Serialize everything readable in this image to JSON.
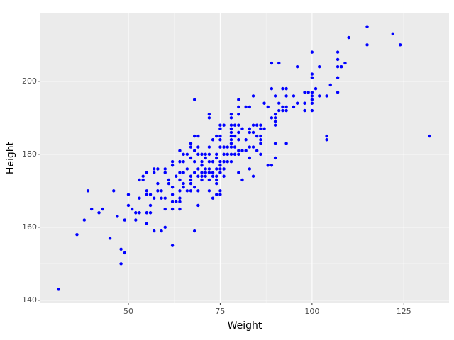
{
  "chart_data": {
    "type": "scatter",
    "x_label": "Weight",
    "y_label": "Height",
    "color": "#0000ff",
    "grid": true,
    "xlim": [
      26.06,
      137.3
    ],
    "ylim": [
      139.2,
      218.8
    ],
    "xticks": [
      50,
      75,
      100,
      125
    ],
    "yticks": [
      140,
      160,
      180,
      200
    ],
    "x": [
      31,
      36,
      38,
      39,
      40,
      42,
      43,
      45,
      46,
      47,
      48,
      48,
      49,
      49,
      50,
      50,
      51,
      52,
      52,
      53,
      53,
      53,
      54,
      54,
      55,
      55,
      55,
      55,
      55,
      56,
      56,
      56,
      57,
      57,
      57,
      57,
      58,
      58,
      58,
      59,
      59,
      59,
      60,
      60,
      60,
      60,
      60,
      61,
      61,
      62,
      62,
      62,
      62,
      62,
      62,
      62,
      63,
      63,
      64,
      64,
      64,
      64,
      64,
      64,
      64,
      64,
      65,
      65,
      65,
      65,
      65,
      66,
      66,
      66,
      67,
      67,
      67,
      67,
      67,
      67,
      67,
      68,
      68,
      68,
      68,
      68,
      68,
      68,
      69,
      69,
      69,
      69,
      69,
      69,
      69,
      70,
      70,
      70,
      70,
      70,
      70,
      71,
      71,
      71,
      71,
      71,
      72,
      72,
      72,
      72,
      72,
      72,
      72,
      72,
      72,
      73,
      73,
      73,
      73,
      73,
      74,
      74,
      74,
      74,
      74,
      74,
      74,
      74,
      75,
      75,
      75,
      75,
      75,
      75,
      75,
      75,
      75,
      75,
      75,
      76,
      76,
      76,
      76,
      76,
      76,
      77,
      77,
      77,
      78,
      78,
      78,
      78,
      78,
      78,
      78,
      78,
      78,
      78,
      78,
      79,
      79,
      79,
      79,
      80,
      80,
      80,
      80,
      80,
      80,
      80,
      80,
      80,
      81,
      81,
      81,
      82,
      82,
      82,
      83,
      83,
      83,
      83,
      83,
      83,
      84,
      84,
      84,
      84,
      84,
      85,
      85,
      85,
      86,
      86,
      86,
      86,
      86,
      86,
      87,
      87,
      88,
      88,
      89,
      89,
      89,
      89,
      90,
      90,
      90,
      90,
      90,
      90,
      90,
      91,
      91,
      91,
      92,
      92,
      92,
      93,
      93,
      93,
      93,
      93,
      95,
      95,
      96,
      96,
      98,
      98,
      98,
      99,
      100,
      100,
      100,
      100,
      100,
      100,
      100,
      100,
      101,
      102,
      102,
      104,
      104,
      104,
      105,
      107,
      107,
      107,
      107,
      107,
      108,
      109,
      110,
      115,
      115,
      122,
      124,
      132
    ],
    "values": [
      143,
      158,
      162,
      170,
      165,
      164,
      165,
      157,
      170,
      163,
      154,
      150,
      153,
      162,
      166,
      169,
      165,
      164,
      162,
      173,
      168,
      164,
      173,
      174,
      175,
      170,
      169,
      164,
      161,
      169,
      166,
      164,
      176,
      175,
      168,
      159,
      176,
      172,
      170,
      170,
      168,
      159,
      176,
      175,
      168,
      165,
      160,
      172,
      173,
      178,
      177,
      171,
      169,
      167,
      165,
      155,
      174,
      167,
      181,
      178,
      175,
      173,
      170,
      168,
      167,
      165,
      180,
      178,
      175,
      172,
      171,
      180,
      176,
      170,
      183,
      182,
      179,
      174,
      173,
      172,
      170,
      195,
      185,
      181,
      178,
      175,
      171,
      159,
      185,
      182,
      180,
      176,
      174,
      170,
      166,
      180,
      178,
      177,
      175,
      174,
      173,
      180,
      179,
      176,
      175,
      174,
      191,
      190,
      182,
      180,
      178,
      176,
      175,
      173,
      170,
      184,
      178,
      175,
      174,
      168,
      185,
      180,
      179,
      176,
      174,
      173,
      172,
      169,
      188,
      187,
      185,
      184,
      182,
      178,
      177,
      176,
      175,
      170,
      169,
      188,
      182,
      180,
      178,
      176,
      174,
      182,
      180,
      178,
      191,
      190,
      188,
      187,
      186,
      185,
      184,
      183,
      182,
      180,
      178,
      188,
      185,
      182,
      180,
      195,
      193,
      191,
      188,
      186,
      184,
      181,
      180,
      175,
      187,
      181,
      173,
      193,
      184,
      181,
      193,
      187,
      186,
      182,
      179,
      176,
      196,
      188,
      186,
      182,
      174,
      188,
      185,
      181,
      188,
      187,
      185,
      184,
      183,
      180,
      194,
      187,
      193,
      177,
      205,
      198,
      190,
      177,
      196,
      191,
      190,
      189,
      188,
      183,
      179,
      205,
      194,
      192,
      198,
      193,
      192,
      198,
      196,
      193,
      192,
      183,
      196,
      193,
      204,
      194,
      197,
      194,
      192,
      197,
      208,
      202,
      201,
      197,
      196,
      195,
      194,
      192,
      198,
      204,
      196,
      196,
      185,
      184,
      199,
      208,
      206,
      204,
      201,
      197,
      204,
      205,
      212,
      215,
      210,
      213,
      210,
      185
    ]
  }
}
